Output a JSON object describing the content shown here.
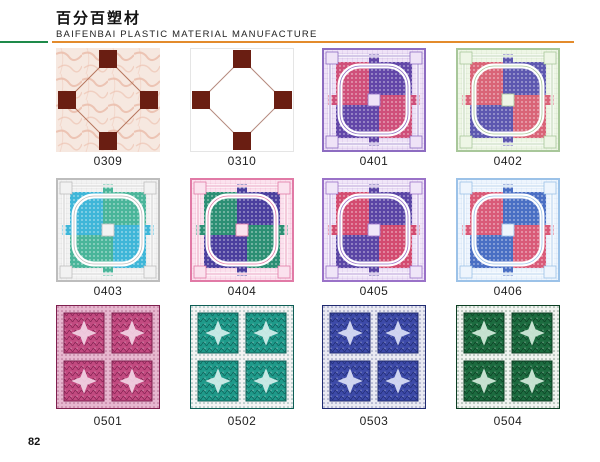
{
  "header": {
    "brand_cn": "百分百塑材",
    "brand_en": "BAIFENBAI PLASTIC MATERIAL MANUFACTURE"
  },
  "tiles": [
    {
      "code": "0309",
      "style": "marble",
      "colors": {
        "bg": "#f6e8e0",
        "vein": "#e9b6a2",
        "accent": "#6a1e12"
      }
    },
    {
      "code": "0310",
      "style": "plain",
      "colors": {
        "bg": "#ffffff",
        "accent": "#6a1e12",
        "line": "#b58a7e"
      }
    },
    {
      "code": "0401",
      "style": "cross",
      "colors": {
        "frame": "#8d6cc1",
        "a": "#cf4f7a",
        "b": "#6246a8",
        "ground": "#efe3f7",
        "band": "#ffffff"
      }
    },
    {
      "code": "0402",
      "style": "cross",
      "colors": {
        "frame": "#a8c79a",
        "a": "#d96477",
        "b": "#5d58b0",
        "ground": "#eef6e6",
        "band": "#ffffff"
      }
    },
    {
      "code": "0403",
      "style": "cross",
      "colors": {
        "frame": "#bdbdbd",
        "a": "#3fb6d8",
        "b": "#4ab59a",
        "ground": "#f2f2f2",
        "band": "#ffffff"
      }
    },
    {
      "code": "0404",
      "style": "cross",
      "colors": {
        "frame": "#e17aa6",
        "a": "#2c8f74",
        "b": "#4b3f9e",
        "ground": "#fbe2ee",
        "band": "#ffffff"
      }
    },
    {
      "code": "0405",
      "style": "cross",
      "colors": {
        "frame": "#9a72c8",
        "a": "#d34b70",
        "b": "#5a45a5",
        "ground": "#f0e6f8",
        "band": "#ffffff"
      }
    },
    {
      "code": "0406",
      "style": "cross",
      "colors": {
        "frame": "#9cc2e8",
        "a": "#d95a78",
        "b": "#4a6fc4",
        "ground": "#eef5fd",
        "band": "#ffffff"
      }
    },
    {
      "code": "0501",
      "style": "quad",
      "colors": {
        "ground": "#e7b7cf",
        "panel": "#c24a80",
        "dark": "#7e1f4e",
        "star": "#f4d7e7"
      }
    },
    {
      "code": "0502",
      "style": "quad",
      "colors": {
        "ground": "#f3f3f3",
        "panel": "#1f9a8a",
        "dark": "#0e5d55",
        "star": "#d8f2ee"
      }
    },
    {
      "code": "0503",
      "style": "quad",
      "colors": {
        "ground": "#e9e9f2",
        "panel": "#3d4aa8",
        "dark": "#1f2a70",
        "star": "#dfe3f8"
      }
    },
    {
      "code": "0504",
      "style": "quad",
      "colors": {
        "ground": "#f0f3ef",
        "panel": "#1c6b3f",
        "dark": "#0b3d22",
        "star": "#d8efe0"
      }
    }
  ],
  "page_number": "82"
}
